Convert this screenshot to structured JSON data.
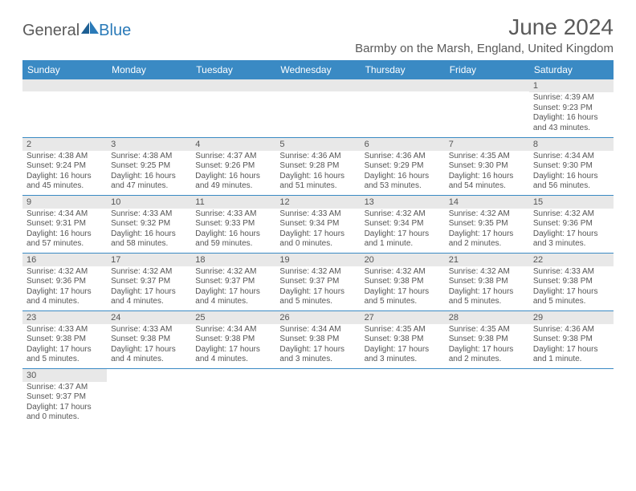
{
  "logo": {
    "general": "General",
    "blue": "Blue"
  },
  "title": "June 2024",
  "location": "Barmby on the Marsh, England, United Kingdom",
  "colors": {
    "header_bg": "#3a8ac4",
    "header_text": "#ffffff",
    "daynum_bg": "#e8e8e8",
    "row_border": "#3a8ac4",
    "logo_blue": "#2a7ab8",
    "text_gray": "#5a5a5a"
  },
  "weekdays": [
    "Sunday",
    "Monday",
    "Tuesday",
    "Wednesday",
    "Thursday",
    "Friday",
    "Saturday"
  ],
  "weeks": [
    [
      {
        "day": "",
        "sunrise": "",
        "sunset": "",
        "daylight": ""
      },
      {
        "day": "",
        "sunrise": "",
        "sunset": "",
        "daylight": ""
      },
      {
        "day": "",
        "sunrise": "",
        "sunset": "",
        "daylight": ""
      },
      {
        "day": "",
        "sunrise": "",
        "sunset": "",
        "daylight": ""
      },
      {
        "day": "",
        "sunrise": "",
        "sunset": "",
        "daylight": ""
      },
      {
        "day": "",
        "sunrise": "",
        "sunset": "",
        "daylight": ""
      },
      {
        "day": "1",
        "sunrise": "Sunrise: 4:39 AM",
        "sunset": "Sunset: 9:23 PM",
        "daylight": "Daylight: 16 hours and 43 minutes."
      }
    ],
    [
      {
        "day": "2",
        "sunrise": "Sunrise: 4:38 AM",
        "sunset": "Sunset: 9:24 PM",
        "daylight": "Daylight: 16 hours and 45 minutes."
      },
      {
        "day": "3",
        "sunrise": "Sunrise: 4:38 AM",
        "sunset": "Sunset: 9:25 PM",
        "daylight": "Daylight: 16 hours and 47 minutes."
      },
      {
        "day": "4",
        "sunrise": "Sunrise: 4:37 AM",
        "sunset": "Sunset: 9:26 PM",
        "daylight": "Daylight: 16 hours and 49 minutes."
      },
      {
        "day": "5",
        "sunrise": "Sunrise: 4:36 AM",
        "sunset": "Sunset: 9:28 PM",
        "daylight": "Daylight: 16 hours and 51 minutes."
      },
      {
        "day": "6",
        "sunrise": "Sunrise: 4:36 AM",
        "sunset": "Sunset: 9:29 PM",
        "daylight": "Daylight: 16 hours and 53 minutes."
      },
      {
        "day": "7",
        "sunrise": "Sunrise: 4:35 AM",
        "sunset": "Sunset: 9:30 PM",
        "daylight": "Daylight: 16 hours and 54 minutes."
      },
      {
        "day": "8",
        "sunrise": "Sunrise: 4:34 AM",
        "sunset": "Sunset: 9:30 PM",
        "daylight": "Daylight: 16 hours and 56 minutes."
      }
    ],
    [
      {
        "day": "9",
        "sunrise": "Sunrise: 4:34 AM",
        "sunset": "Sunset: 9:31 PM",
        "daylight": "Daylight: 16 hours and 57 minutes."
      },
      {
        "day": "10",
        "sunrise": "Sunrise: 4:33 AM",
        "sunset": "Sunset: 9:32 PM",
        "daylight": "Daylight: 16 hours and 58 minutes."
      },
      {
        "day": "11",
        "sunrise": "Sunrise: 4:33 AM",
        "sunset": "Sunset: 9:33 PM",
        "daylight": "Daylight: 16 hours and 59 minutes."
      },
      {
        "day": "12",
        "sunrise": "Sunrise: 4:33 AM",
        "sunset": "Sunset: 9:34 PM",
        "daylight": "Daylight: 17 hours and 0 minutes."
      },
      {
        "day": "13",
        "sunrise": "Sunrise: 4:32 AM",
        "sunset": "Sunset: 9:34 PM",
        "daylight": "Daylight: 17 hours and 1 minute."
      },
      {
        "day": "14",
        "sunrise": "Sunrise: 4:32 AM",
        "sunset": "Sunset: 9:35 PM",
        "daylight": "Daylight: 17 hours and 2 minutes."
      },
      {
        "day": "15",
        "sunrise": "Sunrise: 4:32 AM",
        "sunset": "Sunset: 9:36 PM",
        "daylight": "Daylight: 17 hours and 3 minutes."
      }
    ],
    [
      {
        "day": "16",
        "sunrise": "Sunrise: 4:32 AM",
        "sunset": "Sunset: 9:36 PM",
        "daylight": "Daylight: 17 hours and 4 minutes."
      },
      {
        "day": "17",
        "sunrise": "Sunrise: 4:32 AM",
        "sunset": "Sunset: 9:37 PM",
        "daylight": "Daylight: 17 hours and 4 minutes."
      },
      {
        "day": "18",
        "sunrise": "Sunrise: 4:32 AM",
        "sunset": "Sunset: 9:37 PM",
        "daylight": "Daylight: 17 hours and 4 minutes."
      },
      {
        "day": "19",
        "sunrise": "Sunrise: 4:32 AM",
        "sunset": "Sunset: 9:37 PM",
        "daylight": "Daylight: 17 hours and 5 minutes."
      },
      {
        "day": "20",
        "sunrise": "Sunrise: 4:32 AM",
        "sunset": "Sunset: 9:38 PM",
        "daylight": "Daylight: 17 hours and 5 minutes."
      },
      {
        "day": "21",
        "sunrise": "Sunrise: 4:32 AM",
        "sunset": "Sunset: 9:38 PM",
        "daylight": "Daylight: 17 hours and 5 minutes."
      },
      {
        "day": "22",
        "sunrise": "Sunrise: 4:33 AM",
        "sunset": "Sunset: 9:38 PM",
        "daylight": "Daylight: 17 hours and 5 minutes."
      }
    ],
    [
      {
        "day": "23",
        "sunrise": "Sunrise: 4:33 AM",
        "sunset": "Sunset: 9:38 PM",
        "daylight": "Daylight: 17 hours and 5 minutes."
      },
      {
        "day": "24",
        "sunrise": "Sunrise: 4:33 AM",
        "sunset": "Sunset: 9:38 PM",
        "daylight": "Daylight: 17 hours and 4 minutes."
      },
      {
        "day": "25",
        "sunrise": "Sunrise: 4:34 AM",
        "sunset": "Sunset: 9:38 PM",
        "daylight": "Daylight: 17 hours and 4 minutes."
      },
      {
        "day": "26",
        "sunrise": "Sunrise: 4:34 AM",
        "sunset": "Sunset: 9:38 PM",
        "daylight": "Daylight: 17 hours and 3 minutes."
      },
      {
        "day": "27",
        "sunrise": "Sunrise: 4:35 AM",
        "sunset": "Sunset: 9:38 PM",
        "daylight": "Daylight: 17 hours and 3 minutes."
      },
      {
        "day": "28",
        "sunrise": "Sunrise: 4:35 AM",
        "sunset": "Sunset: 9:38 PM",
        "daylight": "Daylight: 17 hours and 2 minutes."
      },
      {
        "day": "29",
        "sunrise": "Sunrise: 4:36 AM",
        "sunset": "Sunset: 9:38 PM",
        "daylight": "Daylight: 17 hours and 1 minute."
      }
    ],
    [
      {
        "day": "30",
        "sunrise": "Sunrise: 4:37 AM",
        "sunset": "Sunset: 9:37 PM",
        "daylight": "Daylight: 17 hours and 0 minutes."
      },
      {
        "day": "",
        "sunrise": "",
        "sunset": "",
        "daylight": ""
      },
      {
        "day": "",
        "sunrise": "",
        "sunset": "",
        "daylight": ""
      },
      {
        "day": "",
        "sunrise": "",
        "sunset": "",
        "daylight": ""
      },
      {
        "day": "",
        "sunrise": "",
        "sunset": "",
        "daylight": ""
      },
      {
        "day": "",
        "sunrise": "",
        "sunset": "",
        "daylight": ""
      },
      {
        "day": "",
        "sunrise": "",
        "sunset": "",
        "daylight": ""
      }
    ]
  ]
}
